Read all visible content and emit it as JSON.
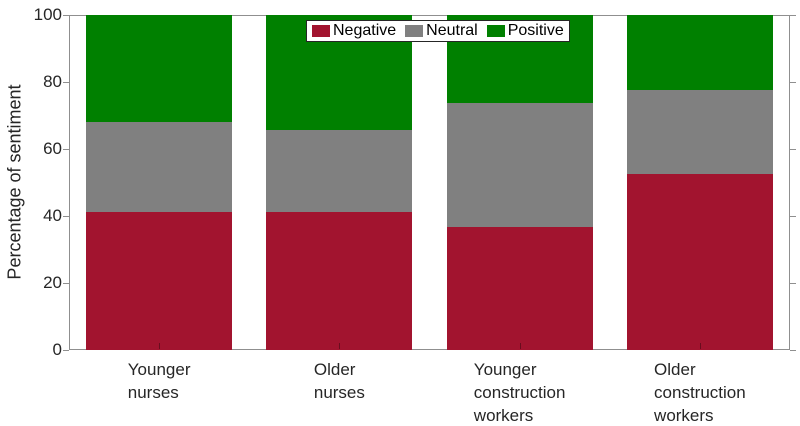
{
  "chart_data": {
    "type": "bar",
    "subtype": "stacked",
    "title": "",
    "xlabel": "",
    "ylabel": "Percentage of sentiment",
    "ylim": [
      0,
      100
    ],
    "yticks": [
      0,
      20,
      40,
      60,
      80,
      100
    ],
    "grid": false,
    "legend_position": "top-center-inside-horizontal",
    "categories": [
      "Younger nurses",
      "Older nurses",
      "Younger construction workers",
      "Older construction workers"
    ],
    "category_label_lines": [
      [
        "Younger",
        "nurses"
      ],
      [
        "Older",
        "nurses"
      ],
      [
        "Younger",
        "construction",
        "workers"
      ],
      [
        "Older",
        "construction",
        "workers"
      ]
    ],
    "series": [
      {
        "name": "Negative",
        "color": "#A2142F",
        "values": [
          41.3,
          41.2,
          36.6,
          52.6
        ]
      },
      {
        "name": "Neutral",
        "color": "#808080",
        "values": [
          26.9,
          24.6,
          37.2,
          25.0
        ]
      },
      {
        "name": "Positive",
        "color": "#008000",
        "values": [
          31.8,
          34.2,
          26.2,
          22.4
        ]
      }
    ],
    "colors": {
      "axis_text": "#262626",
      "axis_line": "#8f8f8f",
      "legend_border": "#262626",
      "legend_background": "#ffffff",
      "plot_background": "#ffffff"
    }
  }
}
